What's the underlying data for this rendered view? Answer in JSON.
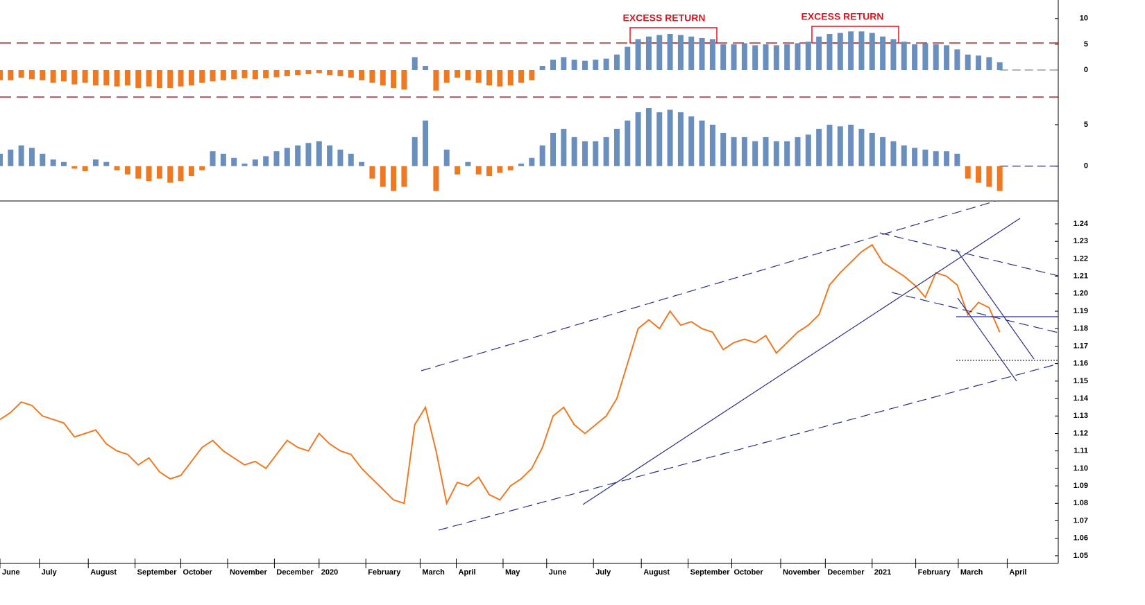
{
  "chart_data": [
    {
      "type": "bar",
      "annotations": [
        "EXCESS RETURN",
        "EXCESS RETURN"
      ],
      "positive_color": "#6a8fbd",
      "negative_color": "#f07820",
      "ylim": [
        -6.6,
        13.6
      ],
      "yticks": [
        0,
        5,
        10
      ],
      "values": [
        -2,
        -2,
        -1.5,
        -1.8,
        -2,
        -2.5,
        -2.2,
        -2.8,
        -2.5,
        -3,
        -3,
        -3.2,
        -3,
        -3.5,
        -3.2,
        -3.5,
        -3.5,
        -3.2,
        -3,
        -2.5,
        -2.2,
        -2,
        -1.8,
        -1.6,
        -1.8,
        -1.6,
        -1.4,
        -1.2,
        -1,
        -0.8,
        -0.6,
        -1,
        -1.2,
        -1.5,
        -2,
        -2.5,
        -3,
        -3.5,
        -3.8,
        2.5,
        0.8,
        -4,
        -2.5,
        -1.5,
        -2,
        -2.5,
        -3,
        -3.2,
        -3,
        -2.5,
        -2,
        0.8,
        2,
        2.5,
        2,
        1.8,
        2,
        2.2,
        3,
        4.5,
        6,
        6.5,
        6.8,
        7,
        6.8,
        6.5,
        6.2,
        6,
        5,
        5,
        5.2,
        4.8,
        5,
        4.8,
        5,
        5.2,
        5.5,
        6.5,
        7,
        7.2,
        7.5,
        7.5,
        7.2,
        6.5,
        6,
        5.5,
        5,
        5.2,
        5,
        4.8,
        4,
        3,
        2.8,
        2.5,
        1.5
      ]
    },
    {
      "type": "bar",
      "positive_color": "#6a8fbd",
      "negative_color": "#f07820",
      "ylim": [
        -4.2,
        7.5
      ],
      "yticks": [
        0,
        5
      ],
      "values": [
        1.5,
        2,
        2.5,
        2.2,
        1.5,
        0.8,
        0.5,
        -0.3,
        -0.6,
        0.8,
        0.5,
        -0.5,
        -1,
        -1.5,
        -1.8,
        -1.5,
        -2,
        -1.8,
        -1.2,
        -0.5,
        1.8,
        1.5,
        1,
        0.3,
        0.8,
        1.2,
        1.8,
        2.2,
        2.5,
        2.8,
        3,
        2.5,
        2,
        1.5,
        0.5,
        -1.5,
        -2.5,
        -3,
        -2.5,
        3.5,
        5.5,
        -3,
        2,
        -1,
        0.5,
        -1,
        -1.2,
        -0.8,
        -0.5,
        0.3,
        1,
        2.5,
        4,
        4.5,
        3.5,
        3,
        3,
        3.5,
        4.5,
        5.5,
        6.5,
        7,
        6.5,
        6.8,
        6.5,
        6,
        5.5,
        5,
        4,
        3.5,
        3.5,
        3,
        3.5,
        3,
        3,
        3.5,
        3.8,
        4.5,
        5,
        4.8,
        5,
        4.5,
        4,
        3.5,
        3,
        2.5,
        2.2,
        2,
        1.8,
        1.8,
        1.5,
        -1.5,
        -2,
        -2.5,
        -3
      ]
    },
    {
      "type": "line",
      "color": "#f07820",
      "ylim": [
        1.046,
        1.2523
      ],
      "yticks": [
        1.05,
        1.06,
        1.07,
        1.08,
        1.09,
        {
          "value": 1.1,
          "label": "1.10"
        },
        1.11,
        1.12,
        1.13,
        1.14,
        1.15,
        1.16,
        1.17,
        1.18,
        1.19,
        {
          "value": 1.2,
          "label": "1.20"
        },
        1.21,
        1.22,
        1.23,
        1.24
      ],
      "xlim": [
        0,
        99.5
      ],
      "xticks": [
        {
          "value": 0,
          "label": "June"
        },
        {
          "value": 3.7,
          "label": "July"
        },
        {
          "value": 8.3,
          "label": "August"
        },
        {
          "value": 12.7,
          "label": "September"
        },
        {
          "value": 17,
          "label": "October"
        },
        {
          "value": 21.4,
          "label": "November"
        },
        {
          "value": 25.8,
          "label": "December"
        },
        {
          "value": 30,
          "label": "2020"
        },
        {
          "value": 34.4,
          "label": "February"
        },
        {
          "value": 39.5,
          "label": "March"
        },
        {
          "value": 42.9,
          "label": "April"
        },
        {
          "value": 47.3,
          "label": "May"
        },
        {
          "value": 51.4,
          "label": "June"
        },
        {
          "value": 55.8,
          "label": "July"
        },
        {
          "value": 60.3,
          "label": "August"
        },
        {
          "value": 64.7,
          "label": "September"
        },
        {
          "value": 68.8,
          "label": "October"
        },
        {
          "value": 73.4,
          "label": "November"
        },
        {
          "value": 77.6,
          "label": "December"
        },
        {
          "value": 82,
          "label": "2021"
        },
        {
          "value": 86.1,
          "label": "February"
        },
        {
          "value": 90.1,
          "label": "March"
        },
        {
          "value": 94.7,
          "label": "April"
        }
      ],
      "values": [
        1.128,
        1.132,
        1.138,
        1.136,
        1.13,
        1.128,
        1.126,
        1.118,
        1.12,
        1.122,
        1.114,
        1.11,
        1.108,
        1.102,
        1.106,
        1.098,
        1.094,
        1.096,
        1.104,
        1.112,
        1.116,
        1.11,
        1.106,
        1.102,
        1.104,
        1.1,
        1.108,
        1.116,
        1.112,
        1.11,
        1.12,
        1.114,
        1.11,
        1.108,
        1.1,
        1.094,
        1.088,
        1.082,
        1.08,
        1.125,
        1.135,
        1.11,
        1.08,
        1.092,
        1.09,
        1.095,
        1.085,
        1.082,
        1.09,
        1.094,
        1.1,
        1.112,
        1.13,
        1.135,
        1.125,
        1.12,
        1.125,
        1.13,
        1.14,
        1.16,
        1.18,
        1.185,
        1.18,
        1.19,
        1.182,
        1.184,
        1.18,
        1.178,
        1.168,
        1.172,
        1.174,
        1.172,
        1.176,
        1.166,
        1.172,
        1.178,
        1.182,
        1.188,
        1.205,
        1.212,
        1.218,
        1.224,
        1.228,
        1.218,
        1.214,
        1.21,
        1.205,
        1.198,
        1.212,
        1.21,
        1.205,
        1.188,
        1.195,
        1.192,
        1.178
      ]
    }
  ]
}
